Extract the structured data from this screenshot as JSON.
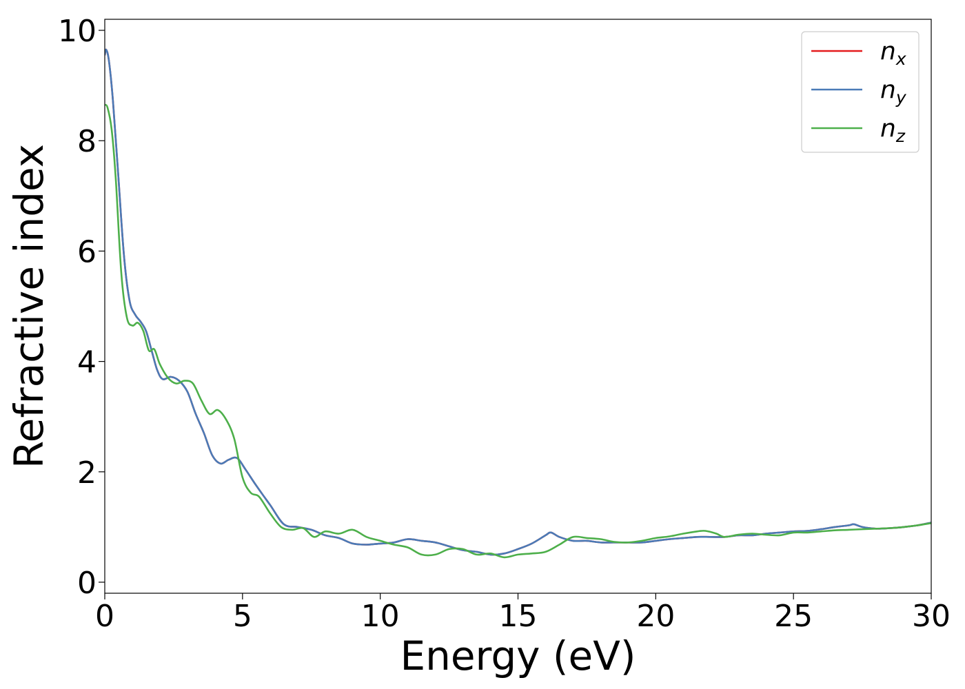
{
  "chart_data": {
    "type": "line",
    "xlabel": "Energy (eV)",
    "ylabel": "Refractive index",
    "xlim": [
      0,
      30
    ],
    "ylim": [
      -0.2,
      10.2
    ],
    "xticks": [
      0,
      5,
      10,
      15,
      20,
      25,
      30
    ],
    "yticks": [
      0,
      2,
      4,
      6,
      8,
      10
    ],
    "xtick_labels": [
      "0",
      "5",
      "10",
      "15",
      "20",
      "25",
      "30"
    ],
    "ytick_labels": [
      "0",
      "2",
      "4",
      "6",
      "8",
      "10"
    ],
    "grid": false,
    "legend_position": "top-right",
    "series": [
      {
        "name": "n_x",
        "label_base": "n",
        "label_sub": "x",
        "color": "#e41a1c",
        "x": [
          0,
          0.05,
          0.15,
          0.3,
          0.5,
          0.7,
          0.9,
          1.1,
          1.3,
          1.5,
          1.7,
          1.9,
          2.1,
          2.4,
          2.7,
          3.0,
          3.3,
          3.6,
          3.9,
          4.2,
          4.5,
          4.8,
          5.1,
          5.5,
          6.0,
          6.5,
          7.0,
          7.5,
          8.0,
          8.5,
          9.0,
          9.5,
          10.0,
          10.5,
          11.0,
          11.5,
          12.0,
          12.5,
          13.0,
          13.5,
          14.0,
          14.5,
          15.0,
          15.5,
          16.0,
          16.2,
          16.5,
          17.0,
          17.5,
          18.0,
          18.5,
          19.0,
          19.5,
          20.0,
          20.5,
          21.0,
          21.5,
          22.0,
          22.5,
          23.0,
          23.5,
          24.0,
          24.5,
          25.0,
          25.5,
          26.0,
          26.5,
          27.0,
          27.2,
          27.5,
          28.0,
          28.5,
          29.0,
          29.5,
          30.0
        ],
        "y": [
          9.55,
          9.65,
          9.45,
          8.7,
          7.3,
          5.9,
          5.1,
          4.85,
          4.72,
          4.55,
          4.2,
          3.85,
          3.68,
          3.72,
          3.65,
          3.45,
          3.05,
          2.7,
          2.3,
          2.15,
          2.22,
          2.25,
          2.05,
          1.75,
          1.4,
          1.05,
          1.0,
          0.95,
          0.85,
          0.8,
          0.7,
          0.68,
          0.7,
          0.72,
          0.78,
          0.75,
          0.72,
          0.65,
          0.58,
          0.55,
          0.5,
          0.52,
          0.6,
          0.7,
          0.85,
          0.9,
          0.82,
          0.75,
          0.75,
          0.72,
          0.72,
          0.72,
          0.72,
          0.75,
          0.78,
          0.8,
          0.82,
          0.82,
          0.82,
          0.85,
          0.85,
          0.88,
          0.9,
          0.92,
          0.93,
          0.96,
          1.0,
          1.03,
          1.05,
          1.0,
          0.97,
          0.98,
          1.0,
          1.03,
          1.08
        ]
      },
      {
        "name": "n_y",
        "label_base": "n",
        "label_sub": "y",
        "color": "#4a7bb7",
        "x": [
          0,
          0.05,
          0.15,
          0.3,
          0.5,
          0.7,
          0.9,
          1.1,
          1.3,
          1.5,
          1.7,
          1.9,
          2.1,
          2.4,
          2.7,
          3.0,
          3.3,
          3.6,
          3.9,
          4.2,
          4.5,
          4.8,
          5.1,
          5.5,
          6.0,
          6.5,
          7.0,
          7.5,
          8.0,
          8.5,
          9.0,
          9.5,
          10.0,
          10.5,
          11.0,
          11.5,
          12.0,
          12.5,
          13.0,
          13.5,
          14.0,
          14.5,
          15.0,
          15.5,
          16.0,
          16.2,
          16.5,
          17.0,
          17.5,
          18.0,
          18.5,
          19.0,
          19.5,
          20.0,
          20.5,
          21.0,
          21.5,
          22.0,
          22.5,
          23.0,
          23.5,
          24.0,
          24.5,
          25.0,
          25.5,
          26.0,
          26.5,
          27.0,
          27.2,
          27.5,
          28.0,
          28.5,
          29.0,
          29.5,
          30.0
        ],
        "y": [
          9.55,
          9.65,
          9.45,
          8.7,
          7.3,
          5.9,
          5.1,
          4.85,
          4.72,
          4.55,
          4.2,
          3.85,
          3.68,
          3.72,
          3.65,
          3.45,
          3.05,
          2.7,
          2.3,
          2.15,
          2.22,
          2.25,
          2.05,
          1.75,
          1.4,
          1.05,
          1.0,
          0.95,
          0.85,
          0.8,
          0.7,
          0.68,
          0.7,
          0.72,
          0.78,
          0.75,
          0.72,
          0.65,
          0.58,
          0.55,
          0.5,
          0.52,
          0.6,
          0.7,
          0.85,
          0.9,
          0.82,
          0.75,
          0.75,
          0.72,
          0.72,
          0.72,
          0.72,
          0.75,
          0.78,
          0.8,
          0.82,
          0.82,
          0.82,
          0.85,
          0.85,
          0.88,
          0.9,
          0.92,
          0.93,
          0.96,
          1.0,
          1.03,
          1.05,
          1.0,
          0.97,
          0.98,
          1.0,
          1.03,
          1.08
        ]
      },
      {
        "name": "n_z",
        "label_base": "n",
        "label_sub": "z",
        "color": "#4daf4a",
        "x": [
          0,
          0.1,
          0.25,
          0.4,
          0.6,
          0.8,
          1.0,
          1.2,
          1.4,
          1.6,
          1.8,
          2.0,
          2.3,
          2.6,
          2.9,
          3.2,
          3.5,
          3.8,
          4.1,
          4.4,
          4.7,
          5.0,
          5.3,
          5.6,
          6.0,
          6.4,
          6.8,
          7.2,
          7.6,
          8.0,
          8.5,
          9.0,
          9.5,
          10.0,
          10.5,
          11.0,
          11.5,
          12.0,
          12.5,
          13.0,
          13.5,
          14.0,
          14.5,
          15.0,
          15.5,
          16.0,
          16.5,
          17.0,
          17.5,
          18.0,
          18.5,
          19.0,
          19.5,
          20.0,
          20.5,
          21.0,
          21.5,
          21.8,
          22.2,
          22.5,
          23.0,
          23.5,
          24.0,
          24.5,
          25.0,
          25.5,
          26.0,
          26.5,
          27.0,
          27.5,
          28.0,
          28.5,
          29.0,
          29.5,
          30.0
        ],
        "y": [
          8.65,
          8.6,
          8.2,
          7.3,
          5.6,
          4.8,
          4.65,
          4.7,
          4.55,
          4.2,
          4.22,
          3.95,
          3.7,
          3.6,
          3.65,
          3.6,
          3.3,
          3.05,
          3.12,
          2.95,
          2.6,
          1.9,
          1.62,
          1.55,
          1.25,
          1.0,
          0.95,
          0.98,
          0.82,
          0.92,
          0.88,
          0.95,
          0.82,
          0.75,
          0.68,
          0.63,
          0.5,
          0.5,
          0.6,
          0.6,
          0.5,
          0.52,
          0.45,
          0.5,
          0.52,
          0.55,
          0.68,
          0.82,
          0.8,
          0.78,
          0.73,
          0.72,
          0.75,
          0.8,
          0.83,
          0.88,
          0.92,
          0.93,
          0.88,
          0.82,
          0.86,
          0.88,
          0.86,
          0.85,
          0.9,
          0.9,
          0.92,
          0.94,
          0.95,
          0.96,
          0.97,
          0.98,
          1.0,
          1.03,
          1.07
        ]
      }
    ]
  }
}
